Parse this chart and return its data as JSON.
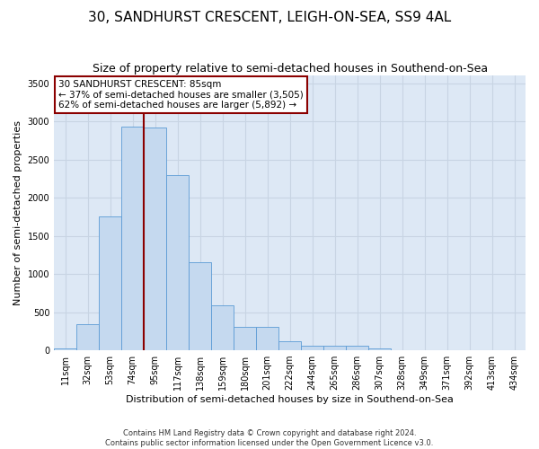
{
  "title": "30, SANDHURST CRESCENT, LEIGH-ON-SEA, SS9 4AL",
  "subtitle": "Size of property relative to semi-detached houses in Southend-on-Sea",
  "xlabel": "Distribution of semi-detached houses by size in Southend-on-Sea",
  "ylabel": "Number of semi-detached properties",
  "footnote1": "Contains HM Land Registry data © Crown copyright and database right 2024.",
  "footnote2": "Contains public sector information licensed under the Open Government Licence v3.0.",
  "annotation_title": "30 SANDHURST CRESCENT: 85sqm",
  "annotation_line1": "← 37% of semi-detached houses are smaller (3,505)",
  "annotation_line2": "62% of semi-detached houses are larger (5,892) →",
  "bar_labels": [
    "11sqm",
    "32sqm",
    "53sqm",
    "74sqm",
    "95sqm",
    "117sqm",
    "138sqm",
    "159sqm",
    "180sqm",
    "201sqm",
    "222sqm",
    "244sqm",
    "265sqm",
    "286sqm",
    "307sqm",
    "328sqm",
    "349sqm",
    "371sqm",
    "392sqm",
    "413sqm",
    "434sqm"
  ],
  "bar_values": [
    30,
    340,
    1750,
    2930,
    2920,
    2290,
    1160,
    590,
    305,
    305,
    120,
    65,
    55,
    55,
    20,
    0,
    0,
    0,
    0,
    0,
    0
  ],
  "bar_color": "#c5d9ef",
  "bar_edge_color": "#5b9bd5",
  "vline_color": "#8b0000",
  "vline_x": 3.5,
  "ylim": [
    0,
    3600
  ],
  "yticks": [
    0,
    500,
    1000,
    1500,
    2000,
    2500,
    3000,
    3500
  ],
  "grid_color": "#c8d4e3",
  "bg_color": "#dde8f5",
  "annotation_box_color": "#8b0000",
  "title_fontsize": 11,
  "subtitle_fontsize": 9,
  "axis_label_fontsize": 8,
  "tick_fontsize": 7,
  "annotation_fontsize": 7.5
}
